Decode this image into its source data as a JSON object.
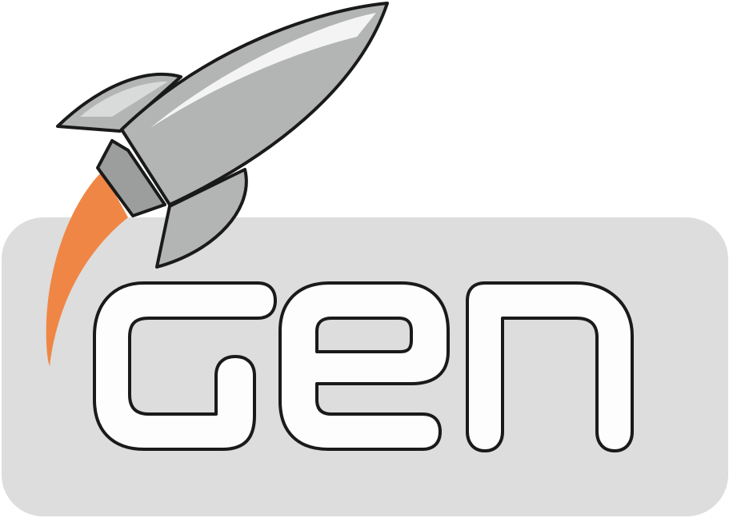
{
  "logo": {
    "wordmark": "gen",
    "colors": {
      "panel": "#dcdddc",
      "letter_fill": "#fdfdfd",
      "outline": "#1a1a1a",
      "rocket_body": "#b3b5b5",
      "rocket_highlight": "#f4f4f4",
      "nozzle": "#9c9e9e",
      "flame": "#f08645"
    },
    "icons": [
      "rocket-icon",
      "flame-trail"
    ]
  }
}
